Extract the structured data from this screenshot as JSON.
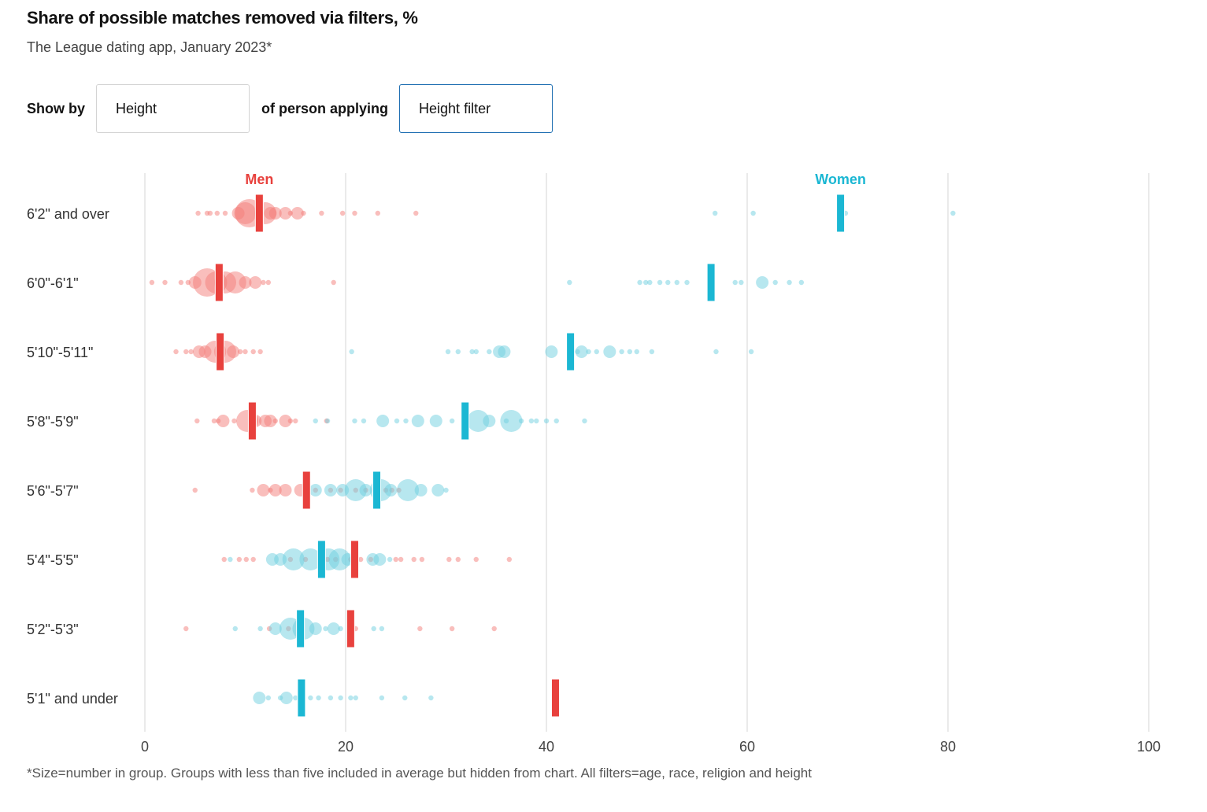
{
  "header": {
    "title": "Share of possible matches removed via filters, %",
    "subtitle": "The League dating app, January 2023*"
  },
  "controls": {
    "show_by_label": "Show by",
    "show_by_value": "Height",
    "middle_label": "of person applying",
    "filter_value": "Height filter"
  },
  "footnote": "*Size=number in group. Groups with less than five included in average but hidden from chart. All filters=age, race, religion and height",
  "colors": {
    "men": "#e8413d",
    "men_bubble": "#f47d7a",
    "women": "#1bb7d3",
    "women_bubble": "#6fd0e0",
    "grid": "#e3e3e3"
  },
  "chart_data": {
    "type": "scatter",
    "subtype": "beeswarm-bubble",
    "title": "Share of possible matches removed via filters, %",
    "xlabel": "",
    "ylabel": "",
    "xlim": [
      0,
      100
    ],
    "xticks": [
      0,
      20,
      40,
      60,
      80,
      100
    ],
    "grid": true,
    "legend": [
      {
        "name": "Men",
        "position": "top, above 6'2\" and over row near men's average"
      },
      {
        "name": "Women",
        "position": "top, above 6'2\" and over row near women's average"
      }
    ],
    "categories": [
      "6'2\" and over",
      "6'0\"-6'1\"",
      "5'10\"-5'11\"",
      "5'8\"-5'9\"",
      "5'6\"-5'7\"",
      "5'4\"-5'5\"",
      "5'2\"-5'3\"",
      "5'1\" and under"
    ],
    "series": [
      {
        "name": "Men",
        "averages": [
          11.4,
          7.4,
          7.5,
          10.7,
          16.1,
          20.9,
          20.5,
          40.9
        ],
        "bubbles": [
          [
            [
              5.3,
              1
            ],
            [
              6.2,
              1
            ],
            [
              6.5,
              1
            ],
            [
              7.2,
              1
            ],
            [
              8.0,
              1
            ],
            [
              9.3,
              2
            ],
            [
              10.0,
              3
            ],
            [
              10.4,
              4
            ],
            [
              12.0,
              3
            ],
            [
              12.5,
              2
            ],
            [
              13.0,
              2
            ],
            [
              14.0,
              2
            ],
            [
              14.5,
              1
            ],
            [
              15.2,
              2
            ],
            [
              15.8,
              1
            ],
            [
              17.6,
              1
            ],
            [
              19.7,
              1
            ],
            [
              20.9,
              1
            ],
            [
              23.2,
              1
            ],
            [
              27.0,
              1
            ]
          ],
          [
            [
              0.7,
              1
            ],
            [
              2.0,
              1
            ],
            [
              3.6,
              1
            ],
            [
              4.3,
              1
            ],
            [
              5.0,
              2
            ],
            [
              6.2,
              4
            ],
            [
              7.1,
              3
            ],
            [
              8.0,
              3
            ],
            [
              9.0,
              3
            ],
            [
              10.0,
              2
            ],
            [
              11.0,
              2
            ],
            [
              11.8,
              1
            ],
            [
              12.3,
              1
            ],
            [
              18.8,
              1
            ]
          ],
          [
            [
              3.1,
              1
            ],
            [
              4.1,
              1
            ],
            [
              4.6,
              1
            ],
            [
              5.4,
              2
            ],
            [
              6.0,
              2
            ],
            [
              7.0,
              3
            ],
            [
              8.0,
              3
            ],
            [
              8.8,
              2
            ],
            [
              9.5,
              1
            ],
            [
              10.0,
              1
            ],
            [
              10.8,
              1
            ],
            [
              11.5,
              1
            ]
          ],
          [
            [
              5.2,
              1
            ],
            [
              6.9,
              1
            ],
            [
              7.3,
              1
            ],
            [
              7.8,
              2
            ],
            [
              8.9,
              1
            ],
            [
              10.2,
              3
            ],
            [
              11.0,
              2
            ],
            [
              12.0,
              2
            ],
            [
              12.5,
              2
            ],
            [
              13.0,
              1
            ],
            [
              14.0,
              2
            ],
            [
              14.5,
              1
            ],
            [
              15.0,
              1
            ],
            [
              18.1,
              1
            ]
          ],
          [
            [
              5.0,
              1
            ],
            [
              10.7,
              1
            ],
            [
              11.8,
              2
            ],
            [
              12.5,
              1
            ],
            [
              13.0,
              2
            ],
            [
              14.0,
              2
            ],
            [
              15.5,
              2
            ],
            [
              17.0,
              1
            ],
            [
              18.5,
              1
            ],
            [
              19.5,
              1
            ],
            [
              21.0,
              1
            ],
            [
              22.0,
              1
            ],
            [
              24.0,
              1
            ],
            [
              24.6,
              1
            ],
            [
              25.3,
              1
            ]
          ],
          [
            [
              7.9,
              1
            ],
            [
              9.4,
              1
            ],
            [
              10.1,
              1
            ],
            [
              10.8,
              1
            ],
            [
              14.5,
              1
            ],
            [
              16.0,
              1
            ],
            [
              18.2,
              1
            ],
            [
              19.0,
              1
            ],
            [
              20.5,
              1
            ],
            [
              21.5,
              1
            ],
            [
              22.5,
              1
            ],
            [
              25.0,
              1
            ],
            [
              25.5,
              1
            ],
            [
              26.8,
              1
            ],
            [
              27.6,
              1
            ],
            [
              30.3,
              1
            ],
            [
              31.2,
              1
            ],
            [
              33.0,
              1
            ],
            [
              36.3,
              1
            ]
          ],
          [
            [
              4.1,
              1
            ],
            [
              12.4,
              1
            ],
            [
              14.3,
              1
            ],
            [
              21.0,
              1
            ],
            [
              27.4,
              1
            ],
            [
              30.6,
              1
            ],
            [
              34.8,
              1
            ]
          ],
          []
        ]
      },
      {
        "name": "Women",
        "averages": [
          69.3,
          56.4,
          42.4,
          31.9,
          23.1,
          17.6,
          15.5,
          15.6
        ],
        "bubbles": [
          [
            [
              56.8,
              1
            ],
            [
              60.6,
              1
            ],
            [
              69.8,
              1
            ],
            [
              80.5,
              1
            ]
          ],
          [
            [
              42.3,
              1
            ],
            [
              49.3,
              1
            ],
            [
              49.9,
              1
            ],
            [
              50.3,
              1
            ],
            [
              51.3,
              1
            ],
            [
              52.1,
              1
            ],
            [
              53.0,
              1
            ],
            [
              54.0,
              1
            ],
            [
              58.8,
              1
            ],
            [
              59.4,
              1
            ],
            [
              61.5,
              2
            ],
            [
              62.8,
              1
            ],
            [
              64.2,
              1
            ],
            [
              65.4,
              1
            ]
          ],
          [
            [
              20.6,
              1
            ],
            [
              30.2,
              1
            ],
            [
              31.2,
              1
            ],
            [
              32.6,
              1
            ],
            [
              33.0,
              1
            ],
            [
              34.3,
              1
            ],
            [
              35.3,
              2
            ],
            [
              35.8,
              2
            ],
            [
              40.5,
              2
            ],
            [
              43.1,
              1
            ],
            [
              43.5,
              2
            ],
            [
              44.2,
              1
            ],
            [
              45.0,
              1
            ],
            [
              46.3,
              2
            ],
            [
              47.5,
              1
            ],
            [
              48.3,
              1
            ],
            [
              49.0,
              1
            ],
            [
              50.5,
              1
            ],
            [
              56.9,
              1
            ],
            [
              60.4,
              1
            ]
          ],
          [
            [
              17.0,
              1
            ],
            [
              18.2,
              1
            ],
            [
              20.9,
              1
            ],
            [
              21.8,
              1
            ],
            [
              23.7,
              2
            ],
            [
              25.1,
              1
            ],
            [
              26.0,
              1
            ],
            [
              27.2,
              2
            ],
            [
              29.0,
              2
            ],
            [
              30.6,
              1
            ],
            [
              33.2,
              3
            ],
            [
              34.3,
              2
            ],
            [
              36.0,
              1
            ],
            [
              36.5,
              3
            ],
            [
              37.5,
              1
            ],
            [
              38.5,
              1
            ],
            [
              39.0,
              1
            ],
            [
              40.0,
              1
            ],
            [
              41.0,
              1
            ],
            [
              43.8,
              1
            ]
          ],
          [
            [
              17.0,
              2
            ],
            [
              18.5,
              2
            ],
            [
              19.7,
              2
            ],
            [
              21.0,
              3
            ],
            [
              22.0,
              2
            ],
            [
              23.5,
              3
            ],
            [
              24.5,
              2
            ],
            [
              26.2,
              3
            ],
            [
              27.5,
              2
            ],
            [
              29.2,
              2
            ],
            [
              30.0,
              1
            ]
          ],
          [
            [
              8.5,
              1
            ],
            [
              12.7,
              2
            ],
            [
              13.5,
              2
            ],
            [
              14.8,
              3
            ],
            [
              16.5,
              3
            ],
            [
              18.3,
              3
            ],
            [
              19.4,
              3
            ],
            [
              20.2,
              2
            ],
            [
              21.1,
              1
            ],
            [
              22.7,
              2
            ],
            [
              23.4,
              2
            ],
            [
              24.4,
              1
            ]
          ],
          [
            [
              9.0,
              1
            ],
            [
              11.5,
              1
            ],
            [
              13.0,
              2
            ],
            [
              14.5,
              3
            ],
            [
              15.8,
              3
            ],
            [
              17.0,
              2
            ],
            [
              18.0,
              1
            ],
            [
              18.8,
              2
            ],
            [
              19.5,
              1
            ],
            [
              22.8,
              1
            ],
            [
              23.6,
              1
            ]
          ],
          [
            [
              11.4,
              2
            ],
            [
              12.3,
              1
            ],
            [
              13.5,
              1
            ],
            [
              14.1,
              2
            ],
            [
              15.0,
              1
            ],
            [
              16.5,
              1
            ],
            [
              17.3,
              1
            ],
            [
              18.5,
              1
            ],
            [
              19.5,
              1
            ],
            [
              20.5,
              1
            ],
            [
              21.0,
              1
            ],
            [
              23.6,
              1
            ],
            [
              25.9,
              1
            ],
            [
              28.5,
              1
            ]
          ]
        ]
      }
    ],
    "bubble_size_note": "bubble size index 1=small,2=medium,3=large,4=very large (relative group size)"
  }
}
